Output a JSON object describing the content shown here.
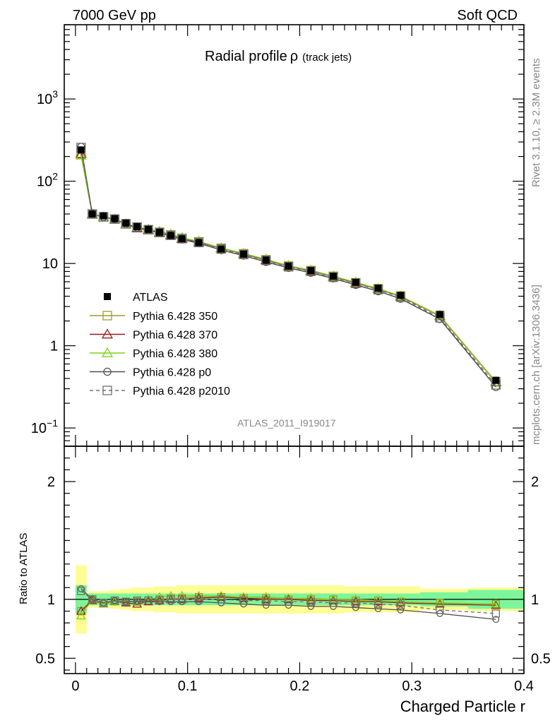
{
  "header": {
    "left": "7000 GeV pp",
    "right": "Soft QCD"
  },
  "side_labels": {
    "rivet": "Rivet 3.1.10, ≥ 2.3M events",
    "mcplots": "mcplots.cern.ch [arXiv:1306.3436]"
  },
  "watermark": "ATLAS_2011_I919017",
  "chart_data": {
    "type": "line",
    "title": "Radial profile",
    "title_symbol": "ρ",
    "title_suffix": "(track jets)",
    "xlabel": "Charged Particle r",
    "ylabel_ratio": "Ratio to ATLAS",
    "xlim": [
      -0.01,
      0.4
    ],
    "ylim_main": [
      0.06,
      8000
    ],
    "ylim_ratio": [
      0.37,
      2.3
    ],
    "y_scale_main": "log",
    "x_ticks": [
      "0",
      "0.1",
      "0.2",
      "0.3",
      "0.4"
    ],
    "x_tick_values": [
      0,
      0.1,
      0.2,
      0.3,
      0.4
    ],
    "y_ticks_main": [
      {
        "value": 0.1,
        "base": "10",
        "exp": "−1"
      },
      {
        "value": 1,
        "base": "1",
        "exp": ""
      },
      {
        "value": 10,
        "base": "10",
        "exp": ""
      },
      {
        "value": 100,
        "base": "10",
        "exp": "2"
      },
      {
        "value": 1000,
        "base": "10",
        "exp": "3"
      }
    ],
    "y_ticks_ratio": [
      "0.5",
      "1",
      "2"
    ],
    "y_tick_values_ratio": [
      0.5,
      1,
      2
    ],
    "x": [
      0.005,
      0.015,
      0.025,
      0.035,
      0.045,
      0.055,
      0.065,
      0.075,
      0.085,
      0.095,
      0.11,
      0.13,
      0.15,
      0.17,
      0.19,
      0.21,
      0.23,
      0.25,
      0.27,
      0.29,
      0.325,
      0.375
    ],
    "data": {
      "name": "ATLAS",
      "values": [
        240,
        40,
        38,
        35,
        31,
        28,
        26,
        24,
        22,
        20,
        18,
        15,
        13,
        11,
        9.3,
        8.2,
        7.0,
        5.9,
        5.0,
        4.1,
        2.4,
        0.38
      ]
    },
    "bands": {
      "green": [
        0.12,
        0.05,
        0.05,
        0.05,
        0.05,
        0.05,
        0.05,
        0.05,
        0.05,
        0.05,
        0.05,
        0.05,
        0.05,
        0.05,
        0.05,
        0.05,
        0.05,
        0.05,
        0.05,
        0.05,
        0.06,
        0.08
      ],
      "yellow": [
        0.29,
        0.07,
        0.07,
        0.08,
        0.09,
        0.1,
        0.1,
        0.11,
        0.11,
        0.12,
        0.12,
        0.12,
        0.12,
        0.12,
        0.12,
        0.12,
        0.12,
        0.11,
        0.11,
        0.11,
        0.09,
        0.1
      ]
    },
    "series": [
      {
        "name": "Pythia 6.428 350",
        "color": "#a09a2a",
        "marker": "square",
        "dash": "",
        "ratio": [
          0.9,
          1.0,
          0.97,
          0.99,
          0.98,
          0.98,
          0.99,
          1.0,
          1.01,
          1.01,
          1.02,
          1.02,
          1.01,
          1.01,
          1.0,
          1.0,
          1.0,
          0.99,
          0.99,
          0.98,
          0.97,
          0.96
        ]
      },
      {
        "name": "Pythia 6.428 370",
        "color": "#9b1b1b",
        "marker": "triangle",
        "dash": "",
        "ratio": [
          0.9,
          0.99,
          0.96,
          0.98,
          0.97,
          0.96,
          0.98,
          0.99,
          1.0,
          1.0,
          1.01,
          1.02,
          1.01,
          1.0,
          1.0,
          0.99,
          0.99,
          0.98,
          0.98,
          0.97,
          0.96,
          0.95
        ]
      },
      {
        "name": "Pythia 6.428 380",
        "color": "#7fd11b",
        "marker": "triangle",
        "dash": "",
        "ratio": [
          0.86,
          1.0,
          0.96,
          0.98,
          0.98,
          0.98,
          1.0,
          1.02,
          1.03,
          1.03,
          1.03,
          1.03,
          1.02,
          1.02,
          1.01,
          1.01,
          1.0,
          1.0,
          0.99,
          0.98,
          0.97,
          0.96
        ]
      },
      {
        "name": "Pythia 6.428 p0",
        "color": "#505050",
        "marker": "circle",
        "dash": "",
        "ratio": [
          1.09,
          1.0,
          0.97,
          0.99,
          0.98,
          0.98,
          0.98,
          0.98,
          0.98,
          0.98,
          0.98,
          0.97,
          0.96,
          0.95,
          0.95,
          0.94,
          0.94,
          0.93,
          0.92,
          0.91,
          0.88,
          0.83
        ]
      },
      {
        "name": "Pythia 6.428 p2010",
        "color": "#707070",
        "marker": "square",
        "dash": "5,4",
        "ratio": [
          1.07,
          1.0,
          0.97,
          0.99,
          0.98,
          0.99,
          0.99,
          0.99,
          1.0,
          1.0,
          1.0,
          1.0,
          0.99,
          0.99,
          0.98,
          0.98,
          0.97,
          0.97,
          0.96,
          0.95,
          0.91,
          0.88
        ]
      }
    ],
    "colors": {
      "green_band": "#7df59a",
      "yellow_band": "#fdfd95",
      "data": "#000000"
    },
    "legend_placement": "middle-left (main panel)",
    "grid": false
  }
}
